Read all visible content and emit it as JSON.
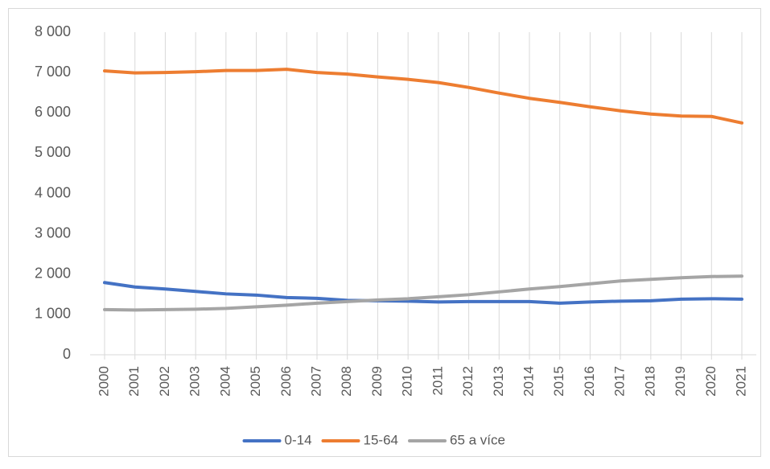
{
  "chart_data": {
    "type": "line",
    "categories": [
      "2000",
      "2001",
      "2002",
      "2003",
      "2004",
      "2005",
      "2006",
      "2007",
      "2008",
      "2009",
      "2010",
      "2011",
      "2012",
      "2013",
      "2014",
      "2015",
      "2016",
      "2017",
      "2018",
      "2019",
      "2020",
      "2021"
    ],
    "series": [
      {
        "name": "0-14",
        "color": "#4472c4",
        "values": [
          1790,
          1680,
          1630,
          1570,
          1510,
          1480,
          1420,
          1400,
          1350,
          1340,
          1330,
          1310,
          1320,
          1320,
          1320,
          1280,
          1310,
          1330,
          1340,
          1380,
          1390,
          1380
        ]
      },
      {
        "name": "15-64",
        "color": "#ed7d31",
        "values": [
          7040,
          6990,
          7000,
          7020,
          7050,
          7050,
          7080,
          7000,
          6960,
          6890,
          6830,
          6750,
          6630,
          6490,
          6360,
          6260,
          6150,
          6050,
          5970,
          5920,
          5910,
          5750
        ]
      },
      {
        "name": "65 a více",
        "color": "#a5a5a5",
        "values": [
          1120,
          1110,
          1120,
          1130,
          1150,
          1190,
          1230,
          1280,
          1320,
          1360,
          1390,
          1440,
          1490,
          1560,
          1630,
          1690,
          1760,
          1830,
          1870,
          1910,
          1940,
          1950
        ]
      }
    ],
    "ylim": [
      0,
      8000
    ],
    "yticks": [
      0,
      {
        "value": 1000,
        "label": "1 000"
      },
      {
        "value": 2000,
        "label": "2 000"
      },
      {
        "value": 3000,
        "label": "3 000"
      },
      {
        "value": 4000,
        "label": "4 000"
      },
      {
        "value": 5000,
        "label": "5 000"
      },
      {
        "value": 6000,
        "label": "6 000"
      },
      {
        "value": 7000,
        "label": "7 000"
      },
      {
        "value": 8000,
        "label": "8 000"
      }
    ],
    "xgrid": true,
    "legend": "bottom"
  }
}
